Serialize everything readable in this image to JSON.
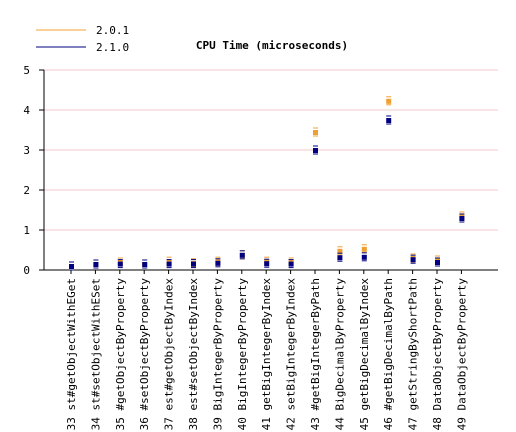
{
  "chart_data": {
    "type": "scatter",
    "title": "CPU Time (microseconds)",
    "xlabel": "",
    "ylabel": "",
    "ylim": [
      0,
      5
    ],
    "yticks": [
      "0",
      "1",
      "2",
      "3",
      "4",
      "5"
    ],
    "grid": true,
    "legend_position": "top-left",
    "categories": [
      "33 st#getObjectWithEGet",
      "34 st#setObjectWithESet",
      "35 #getObjectByProperty",
      "36 #setObjectByProperty",
      "37 est#getObjectByIndex",
      "38 est#setObjectByIndex",
      "39 BigIntegerByProperty",
      "40 BigIntegerByProperty",
      "41 getBigIntegerByIndex",
      "42 setBigIntegerByIndex",
      "43 #getBigIntegerByPath",
      "44 BigDecimalByProperty",
      "45 getBigDecimalByIndex",
      "46 #getBigDecimalByPath",
      "47 getStringByShortPath",
      "48 DataObjectByProperty",
      "49 DataObjectByProperty"
    ],
    "series": [
      {
        "name": "2.0.1",
        "color": "#f0a030",
        "values": [
          0.1,
          0.15,
          0.2,
          0.15,
          0.22,
          0.18,
          0.22,
          0.38,
          0.22,
          0.2,
          3.45,
          0.48,
          0.53,
          4.23,
          0.3,
          0.25,
          1.35
        ]
      },
      {
        "name": "2.1.0",
        "color": "#000080",
        "values": [
          0.1,
          0.15,
          0.16,
          0.15,
          0.16,
          0.16,
          0.18,
          0.38,
          0.17,
          0.16,
          3.0,
          0.32,
          0.33,
          3.75,
          0.27,
          0.2,
          1.3
        ]
      }
    ]
  }
}
